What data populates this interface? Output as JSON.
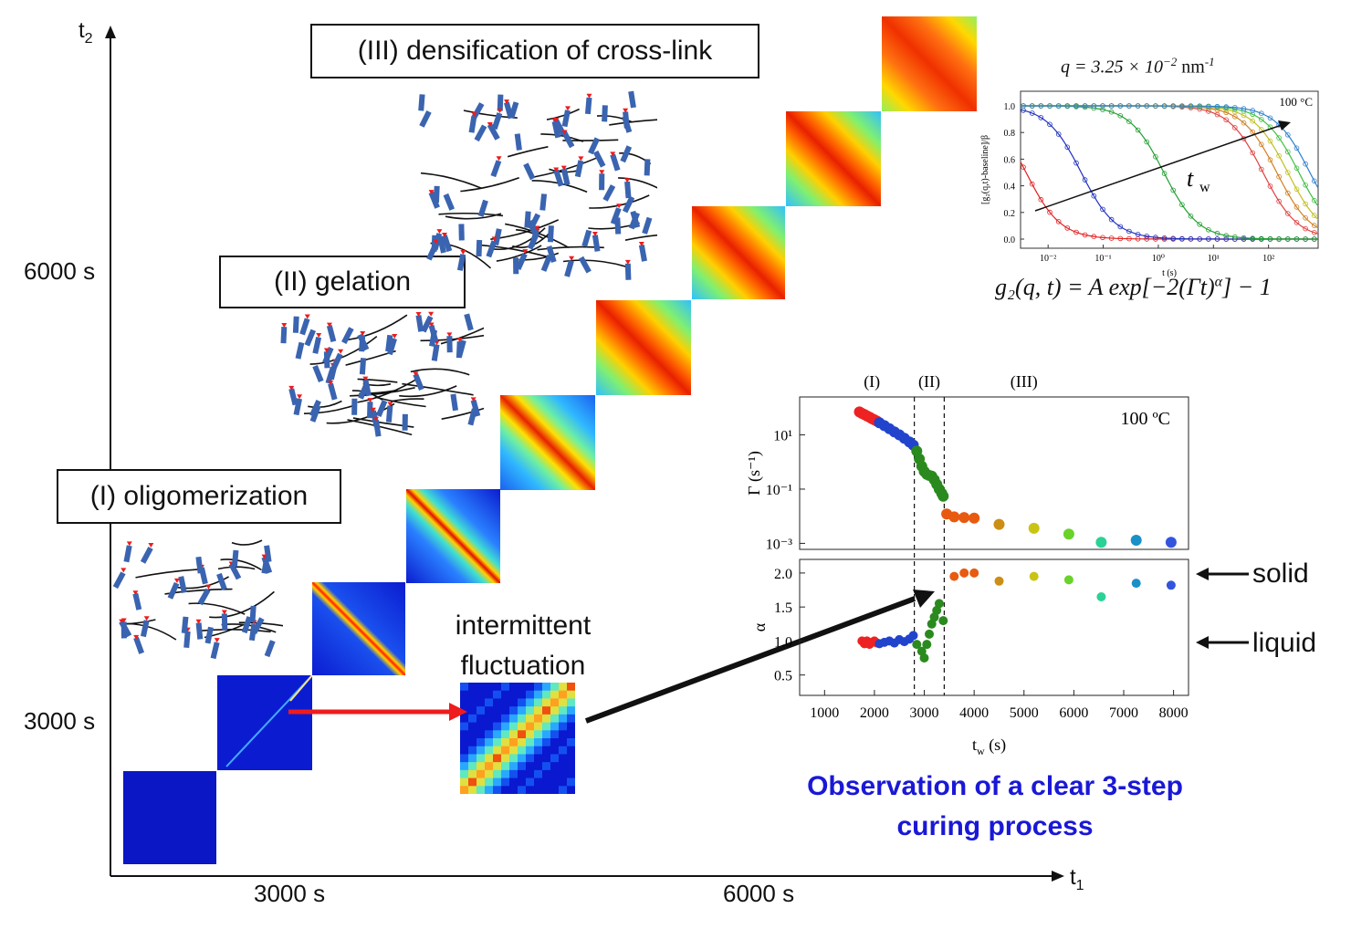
{
  "main_axes": {
    "y_label": "t",
    "y_sub": "2",
    "x_label": "t",
    "x_sub": "1",
    "y_ticks": [
      "6000 s",
      "3000 s"
    ],
    "x_ticks": [
      "3000 s",
      "6000 s"
    ]
  },
  "stages": {
    "stage1": "(I) oligomerization",
    "stage2": "(II) gelation",
    "stage3": "(III) densification of cross-link"
  },
  "intermittent": {
    "line1": "intermittent",
    "line2": "fluctuation"
  },
  "g2_panel": {
    "q_label": "q = 3.25 × 10",
    "q_exp": "−2",
    "q_unit": " nm",
    "q_unit_exp": "-1",
    "temp": "100 °C",
    "ylabel": "[g₂(q,t)-baseline]/β",
    "xlabel": "t (s)",
    "yticks": [
      "1.0",
      "0.8",
      "0.6",
      "0.4",
      "0.2",
      "0.0"
    ],
    "xticks": [
      "10⁻²",
      "10⁻¹",
      "10⁰",
      "10¹",
      "10²"
    ],
    "tw_label": "t",
    "tw_sub": "w",
    "formula": "g₂(q, t) = A exp[−2(Γt)",
    "formula_exp": "α",
    "formula_tail": "] − 1"
  },
  "chart_data": {
    "type": "scatter",
    "phase_labels": [
      "(I)",
      "(II)",
      "(III)"
    ],
    "temp_label": "100 ºC",
    "xlabel": "t",
    "xlabel_sub": "w",
    "xlabel_unit": " (s)",
    "xticks": [
      "1000",
      "2000",
      "3000",
      "4000",
      "5000",
      "6000",
      "7000",
      "8000"
    ],
    "xlim": [
      500,
      8300
    ],
    "boundaries": [
      2800,
      3400
    ],
    "top_panel": {
      "ylabel": "Γ (s⁻¹)",
      "yscale": "log",
      "ylim": [
        0.0006,
        250
      ],
      "yticks": [
        "10¹",
        "10⁻¹",
        "10⁻³"
      ],
      "series": [
        {
          "color": "#ee2222",
          "points": [
            [
              1700,
              70
            ],
            [
              1750,
              62
            ],
            [
              1800,
              56
            ],
            [
              1850,
              50
            ],
            [
              1900,
              45
            ],
            [
              1950,
              40
            ],
            [
              2000,
              36
            ],
            [
              2050,
              32
            ]
          ]
        },
        {
          "color": "#2244cc",
          "points": [
            [
              2100,
              28
            ],
            [
              2200,
              22
            ],
            [
              2300,
              17
            ],
            [
              2400,
              13
            ],
            [
              2500,
              10
            ],
            [
              2600,
              7.5
            ],
            [
              2700,
              5.5
            ],
            [
              2780,
              4.2
            ]
          ]
        },
        {
          "color": "#2a8a1e",
          "points": [
            [
              2850,
              2.5
            ],
            [
              2900,
              1.3
            ],
            [
              2950,
              0.7
            ],
            [
              3000,
              0.45
            ],
            [
              3050,
              0.35
            ],
            [
              3100,
              0.32
            ],
            [
              3150,
              0.3
            ],
            [
              3200,
              0.22
            ],
            [
              3250,
              0.15
            ],
            [
              3300,
              0.1
            ],
            [
              3350,
              0.07
            ],
            [
              3380,
              0.055
            ]
          ]
        },
        {
          "color": "#e85a10",
          "points": [
            [
              3450,
              0.012
            ],
            [
              3600,
              0.0095
            ],
            [
              3800,
              0.009
            ],
            [
              4000,
              0.0085
            ]
          ]
        },
        {
          "color": "#cc8e14",
          "points": [
            [
              4500,
              0.005
            ]
          ]
        },
        {
          "color": "#c9c414",
          "points": [
            [
              5200,
              0.0036
            ]
          ]
        },
        {
          "color": "#6ad22a",
          "points": [
            [
              5900,
              0.0022
            ]
          ]
        },
        {
          "color": "#2ad296",
          "points": [
            [
              6550,
              0.0011
            ]
          ]
        },
        {
          "color": "#1a90c8",
          "points": [
            [
              7250,
              0.0013
            ]
          ]
        },
        {
          "color": "#3355dd",
          "points": [
            [
              7950,
              0.0011
            ]
          ]
        }
      ]
    },
    "bottom_panel": {
      "ylabel": "α",
      "ylim": [
        0.2,
        2.2
      ],
      "yticks": [
        "2.0",
        "1.5",
        "1.0",
        "0.5"
      ],
      "series": [
        {
          "color": "#ee2222",
          "points": [
            [
              1750,
              1.0
            ],
            [
              1800,
              0.96
            ],
            [
              1850,
              1.0
            ],
            [
              1900,
              0.95
            ],
            [
              1950,
              0.98
            ],
            [
              2000,
              1.0
            ],
            [
              2050,
              0.97
            ]
          ]
        },
        {
          "color": "#2244cc",
          "points": [
            [
              2100,
              0.96
            ],
            [
              2200,
              0.98
            ],
            [
              2300,
              1.0
            ],
            [
              2400,
              0.97
            ],
            [
              2500,
              1.02
            ],
            [
              2600,
              0.99
            ],
            [
              2700,
              1.03
            ],
            [
              2780,
              1.08
            ]
          ]
        },
        {
          "color": "#2a8a1e",
          "points": [
            [
              2850,
              0.95
            ],
            [
              2950,
              0.85
            ],
            [
              3000,
              0.75
            ],
            [
              3050,
              0.95
            ],
            [
              3100,
              1.1
            ],
            [
              3150,
              1.25
            ],
            [
              3200,
              1.35
            ],
            [
              3250,
              1.45
            ],
            [
              3300,
              1.55
            ],
            [
              3380,
              1.3
            ]
          ]
        },
        {
          "color": "#e85a10",
          "points": [
            [
              3600,
              1.95
            ],
            [
              3800,
              2.0
            ],
            [
              4000,
              2.0
            ]
          ]
        },
        {
          "color": "#cc8e14",
          "points": [
            [
              4500,
              1.88
            ]
          ]
        },
        {
          "color": "#c9c414",
          "points": [
            [
              5200,
              1.95
            ]
          ]
        },
        {
          "color": "#6ad22a",
          "points": [
            [
              5900,
              1.9
            ]
          ]
        },
        {
          "color": "#2ad296",
          "points": [
            [
              6550,
              1.65
            ]
          ]
        },
        {
          "color": "#1a90c8",
          "points": [
            [
              7250,
              1.85
            ]
          ]
        },
        {
          "color": "#3355dd",
          "points": [
            [
              7950,
              1.82
            ]
          ]
        }
      ]
    }
  },
  "labels": {
    "solid": "solid",
    "liquid": "liquid",
    "observation_line1": "Observation of a clear 3-step",
    "observation_line2": "curing process"
  },
  "colors": {
    "deep_blue": "#0a14c8",
    "red_arrow": "#ee1c1c",
    "observation_text": "#1a18d6"
  }
}
